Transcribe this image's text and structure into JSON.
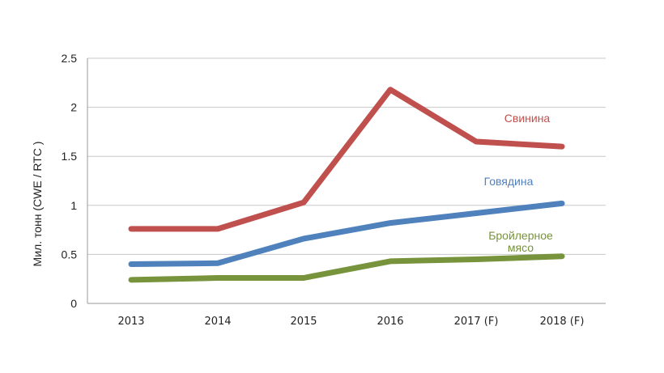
{
  "chart_data": {
    "type": "line",
    "categories": [
      "2013",
      "2014",
      "2015",
      "2016",
      "2017 (F)",
      "2018 (F)"
    ],
    "ylabel": "Мил. тонн (CWE / RTC )",
    "ylim": [
      0,
      2.5
    ],
    "yticks": [
      "0",
      "0.5",
      "1",
      "1.5",
      "2",
      "2.5"
    ],
    "grid": true,
    "series": [
      {
        "name": "Свинина",
        "color": "#c0504d",
        "values": [
          0.76,
          0.76,
          1.03,
          2.18,
          1.65,
          1.6
        ]
      },
      {
        "name": "Говядина",
        "color": "#4f81bd",
        "values": [
          0.4,
          0.41,
          0.66,
          0.82,
          0.92,
          1.02
        ]
      },
      {
        "name": "Бройлерное мясо",
        "color": "#77933c",
        "values": [
          0.24,
          0.26,
          0.26,
          0.43,
          0.45,
          0.48
        ]
      }
    ],
    "series_label_lines": [
      [
        "Свинина"
      ],
      [
        "Говядина"
      ],
      [
        "Бройлерное",
        "мясо"
      ]
    ]
  }
}
